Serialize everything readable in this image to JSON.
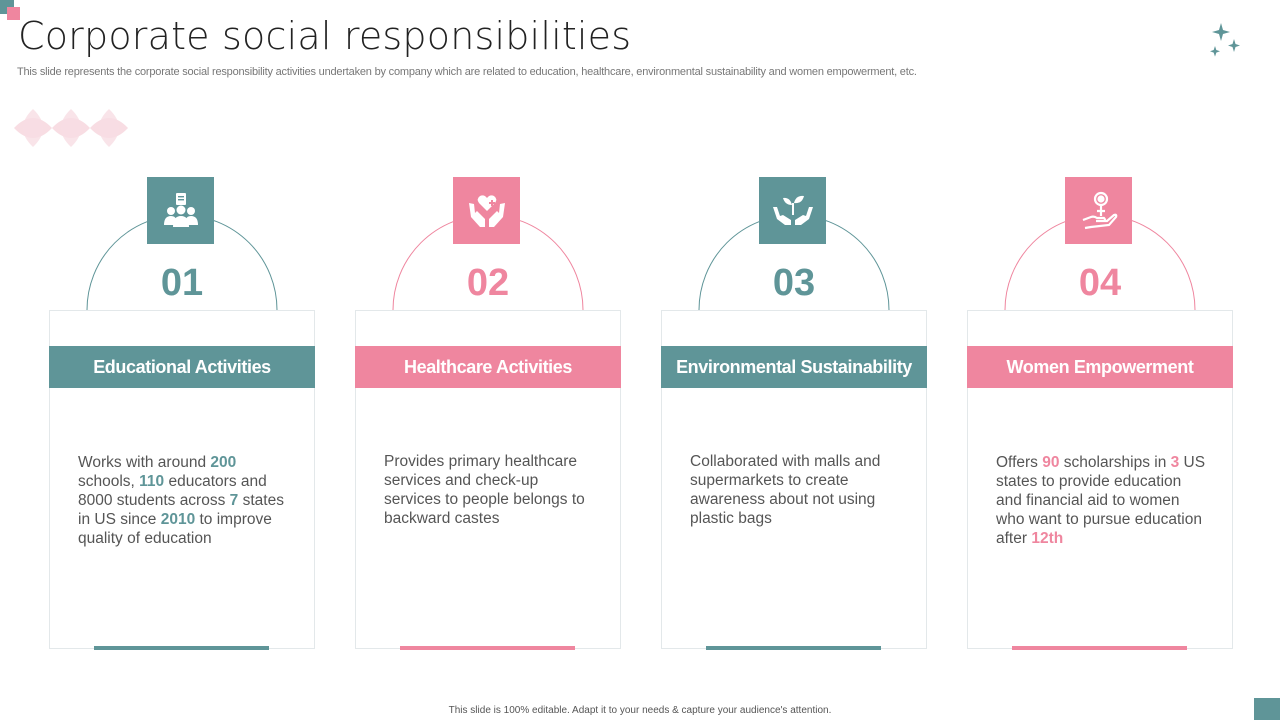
{
  "title": "Corporate social responsibilities",
  "subtitle": "This slide represents the corporate social responsibility activities undertaken by company which are related to education, healthcare, environmental sustainability and women empowerment, etc.",
  "footer": "This slide is 100% editable.  Adapt it to your needs & capture your audience's attention.",
  "colors": {
    "teal": "#5f9598",
    "pink": "#ef869f",
    "deco_pink": "#f8dde3"
  },
  "cards": [
    {
      "number": "01",
      "heading": "Educational Activities",
      "icon": "people-education-icon",
      "color": "teal",
      "body": [
        [
          "Works with around ",
          false
        ],
        [
          "200",
          true
        ],
        [
          " schools, ",
          false
        ],
        [
          "110",
          true
        ],
        [
          " educators and 8000 students  across ",
          false
        ],
        [
          "7",
          true
        ],
        [
          " states in US since ",
          false
        ],
        [
          "2010",
          true
        ],
        [
          " to improve quality  of education",
          false
        ]
      ]
    },
    {
      "number": "02",
      "heading": "Healthcare Activities",
      "icon": "hands-heart-icon",
      "color": "pink",
      "body": [
        [
          "Provides primary healthcare services and check-up services to people belongs to backward castes",
          false
        ]
      ]
    },
    {
      "number": "03",
      "heading": "Environmental Sustainability",
      "icon": "hands-plant-icon",
      "color": "teal",
      "body": [
        [
          "Collaborated with malls and supermarkets to create awareness about not using plastic bags",
          false
        ]
      ]
    },
    {
      "number": "04",
      "heading": "Women Empowerment",
      "icon": "hand-female-icon",
      "color": "pink",
      "body": [
        [
          "Offers ",
          false
        ],
        [
          "90",
          true
        ],
        [
          " scholarships in ",
          false
        ],
        [
          "3",
          true
        ],
        [
          " US states to provide education and financial aid to women who want to pursue education after ",
          false
        ],
        [
          "12th",
          true
        ]
      ]
    }
  ]
}
